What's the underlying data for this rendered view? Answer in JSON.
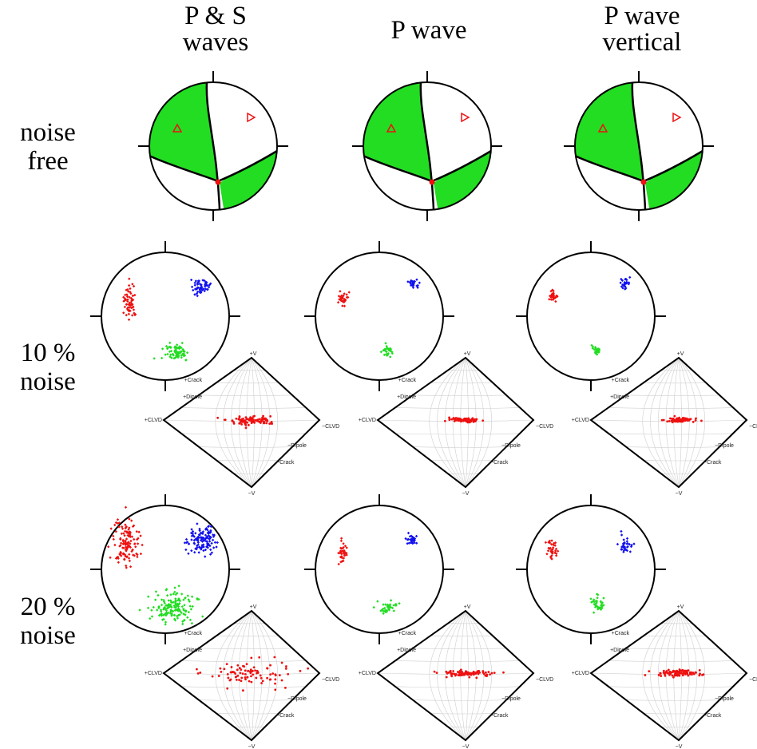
{
  "columns": [
    {
      "title_line1": "P & S",
      "title_line2": "waves"
    },
    {
      "title_line1": "P wave",
      "title_line2": ""
    },
    {
      "title_line1": "P wave",
      "title_line2": "vertical"
    }
  ],
  "rows": [
    {
      "label_line1": "noise",
      "label_line2": "free"
    },
    {
      "label_line1": "10 %",
      "label_line2": "noise"
    },
    {
      "label_line1": "20 %",
      "label_line2": "noise"
    }
  ],
  "diamond_labels": {
    "top": "+V",
    "bottom": "−V",
    "left_upper": "+Crack",
    "left_mid": "+Dipole",
    "left_low": "+CLVD",
    "right_upper": "−CLVD",
    "right_mid": "−Dipole",
    "right_low": "−Crack"
  },
  "colors": {
    "green_fill": "#22dd22",
    "red": "#ee1111",
    "blue": "#1111ee",
    "green_points": "#22dd22",
    "outline": "#000000"
  }
}
